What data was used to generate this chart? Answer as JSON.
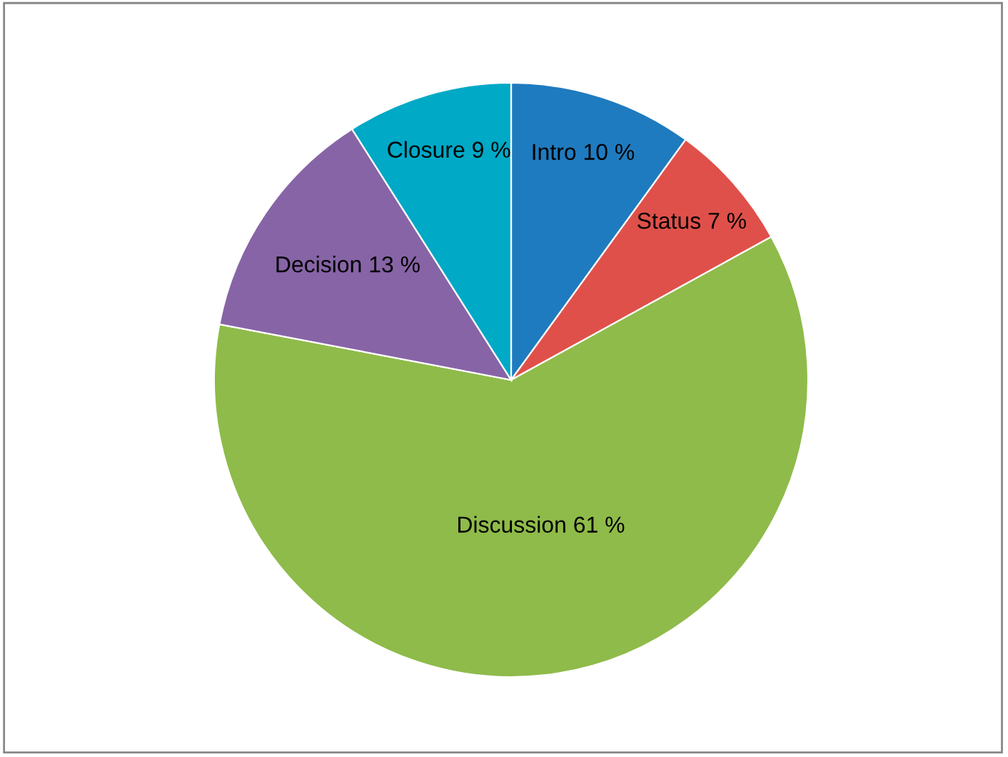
{
  "chart_data": {
    "type": "pie",
    "categories": [
      "Intro",
      "Status",
      "Discussion",
      "Decision",
      "Closure"
    ],
    "values": [
      10,
      7,
      61,
      13,
      9
    ],
    "colors": [
      "#1f7bbf",
      "#e0504a",
      "#8fbb4a",
      "#8764a6",
      "#00a9c6"
    ],
    "value_labels": [
      "10 %",
      "7 %",
      "61 %",
      "13 %",
      "9 %"
    ],
    "legend": false
  }
}
